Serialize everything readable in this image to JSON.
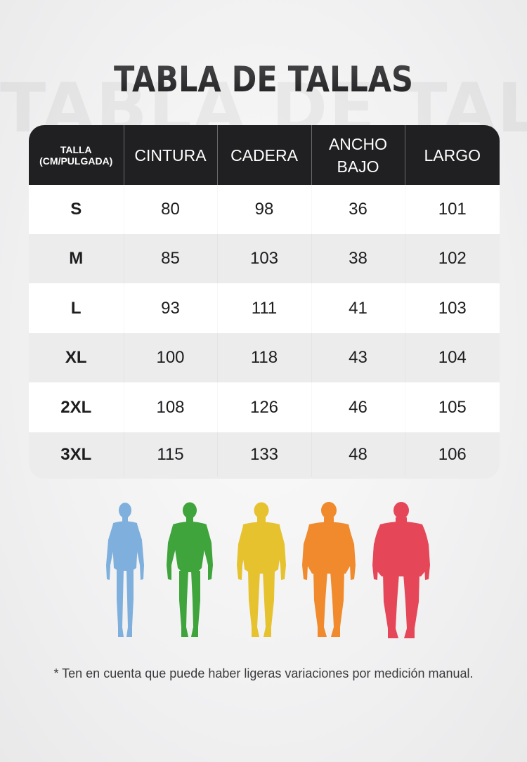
{
  "title": "TABLA DE TALLAS",
  "watermark": "TABLA DE TALLAS",
  "table": {
    "headers": [
      "TALLA\n(CM/PULGADA)",
      "CINTURA",
      "CADERA",
      "ANCHO\nBAJO",
      "LARGO"
    ],
    "rows": [
      [
        "S",
        "80",
        "98",
        "36",
        "101"
      ],
      [
        "M",
        "85",
        "103",
        "38",
        "102"
      ],
      [
        "L",
        "93",
        "111",
        "41",
        "103"
      ],
      [
        "XL",
        "100",
        "118",
        "43",
        "104"
      ],
      [
        "2XL",
        "108",
        "126",
        "46",
        "105"
      ],
      [
        "3XL",
        "115",
        "133",
        "48",
        "106"
      ]
    ]
  },
  "figures": {
    "colors": [
      "#7fb0dd",
      "#3fa43b",
      "#e6c22f",
      "#f08a2c",
      "#e54758"
    ],
    "icon": "human-silhouette-icon"
  },
  "note": "* Ten en cuenta que puede haber ligeras variaciones por medición manual."
}
